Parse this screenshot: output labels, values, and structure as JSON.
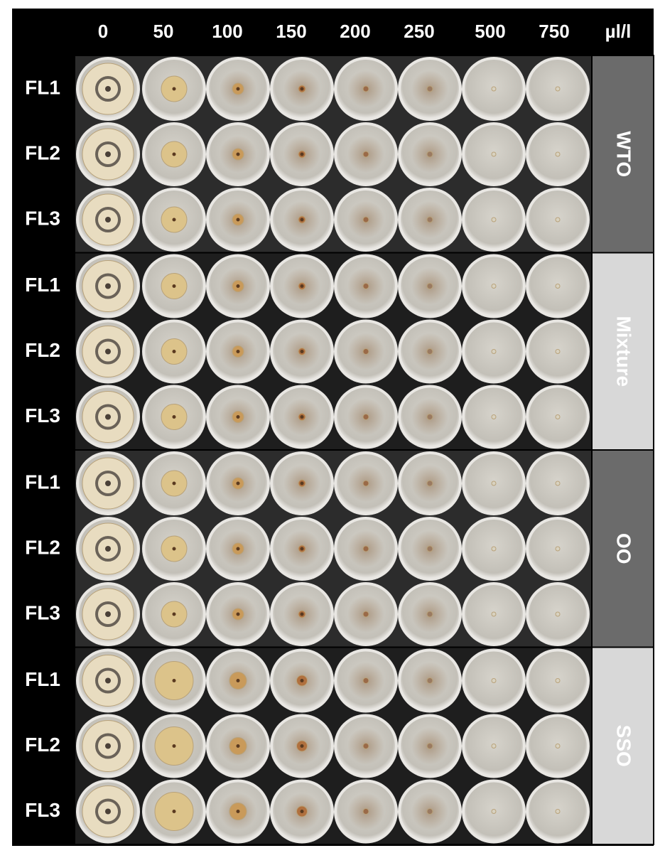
{
  "headers": {
    "columns": [
      "0",
      "50",
      "100",
      "150",
      "200",
      "250",
      "500",
      "750"
    ],
    "unit": "µl/l"
  },
  "groups": [
    {
      "label": "WTO",
      "rows": [
        "FL1",
        "FL2",
        "FL3"
      ]
    },
    {
      "label": "Mixture",
      "rows": [
        "FL1",
        "FL2",
        "FL3"
      ]
    },
    {
      "label": "OO",
      "rows": [
        "FL1",
        "FL2",
        "FL3"
      ]
    },
    {
      "label": "SSO",
      "rows": [
        "FL1",
        "FL2",
        "FL3"
      ]
    }
  ]
}
